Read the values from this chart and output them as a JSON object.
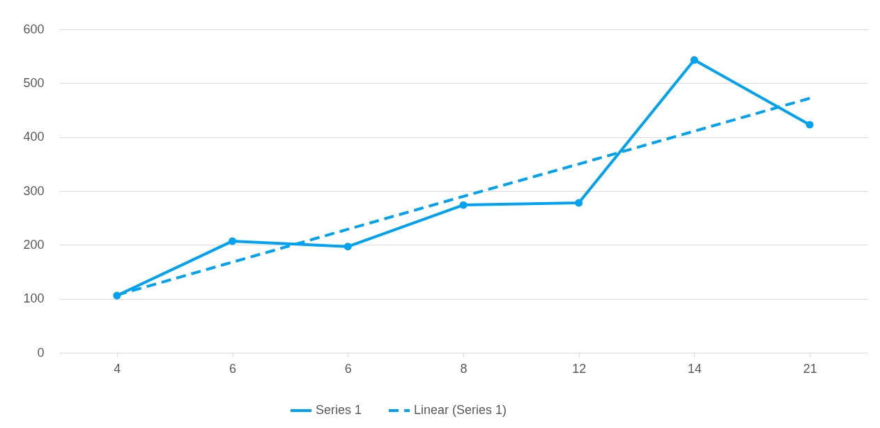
{
  "chart_data": {
    "type": "line",
    "categories": [
      "4",
      "6",
      "6",
      "8",
      "12",
      "14",
      "21"
    ],
    "series": [
      {
        "name": "Series 1",
        "color": "#00a2f2",
        "values": [
          106,
          207,
          197,
          274,
          278,
          543,
          423
        ],
        "marker": "circle",
        "line_style": "solid"
      },
      {
        "name": "Linear (Series 1)",
        "color": "#00a2f2",
        "values": [
          107,
          168,
          229,
          290,
          350,
          411,
          472
        ],
        "marker": "none",
        "line_style": "dashed"
      }
    ],
    "ylim": [
      0,
      600
    ],
    "yticks": [
      0,
      100,
      200,
      300,
      400,
      500,
      600
    ],
    "grid": "y",
    "legend": "bottom"
  }
}
